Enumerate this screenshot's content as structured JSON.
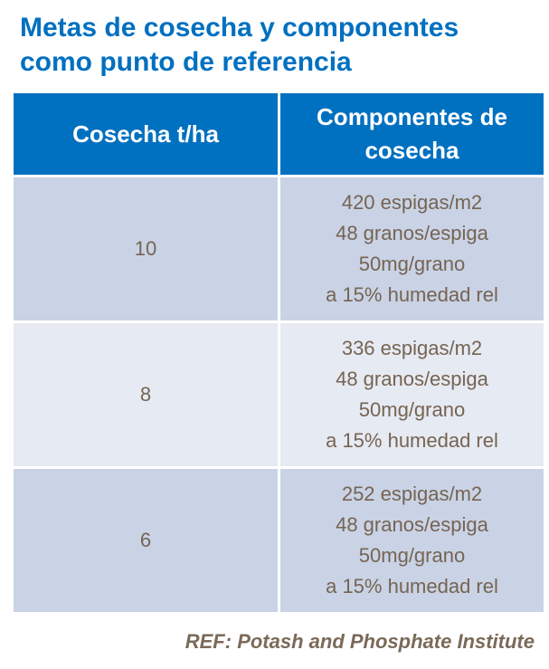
{
  "title": {
    "line1": "Metas de cosecha y componentes",
    "line2": "como punto de referencia"
  },
  "table": {
    "headers": [
      "Cosecha t/ha",
      "Componentes de cosecha"
    ],
    "rows": [
      {
        "yield": "10",
        "components": [
          "420 espigas/m2",
          "48 granos/espiga",
          "50mg/grano",
          "a 15% humedad rel"
        ]
      },
      {
        "yield": "8",
        "components": [
          "336 espigas/m2",
          "48 granos/espiga",
          "50mg/grano",
          "a 15% humedad rel"
        ]
      },
      {
        "yield": "6",
        "components": [
          "252 espigas/m2",
          "48 granos/espiga",
          "50mg/grano",
          "a 15% humedad rel"
        ]
      }
    ]
  },
  "reference": "REF: Potash and Phosphate Institute",
  "colors": {
    "accent": "#0070C0",
    "row_dark": "#C9D3E5",
    "row_light": "#E6EAF2",
    "text": "#766453"
  }
}
